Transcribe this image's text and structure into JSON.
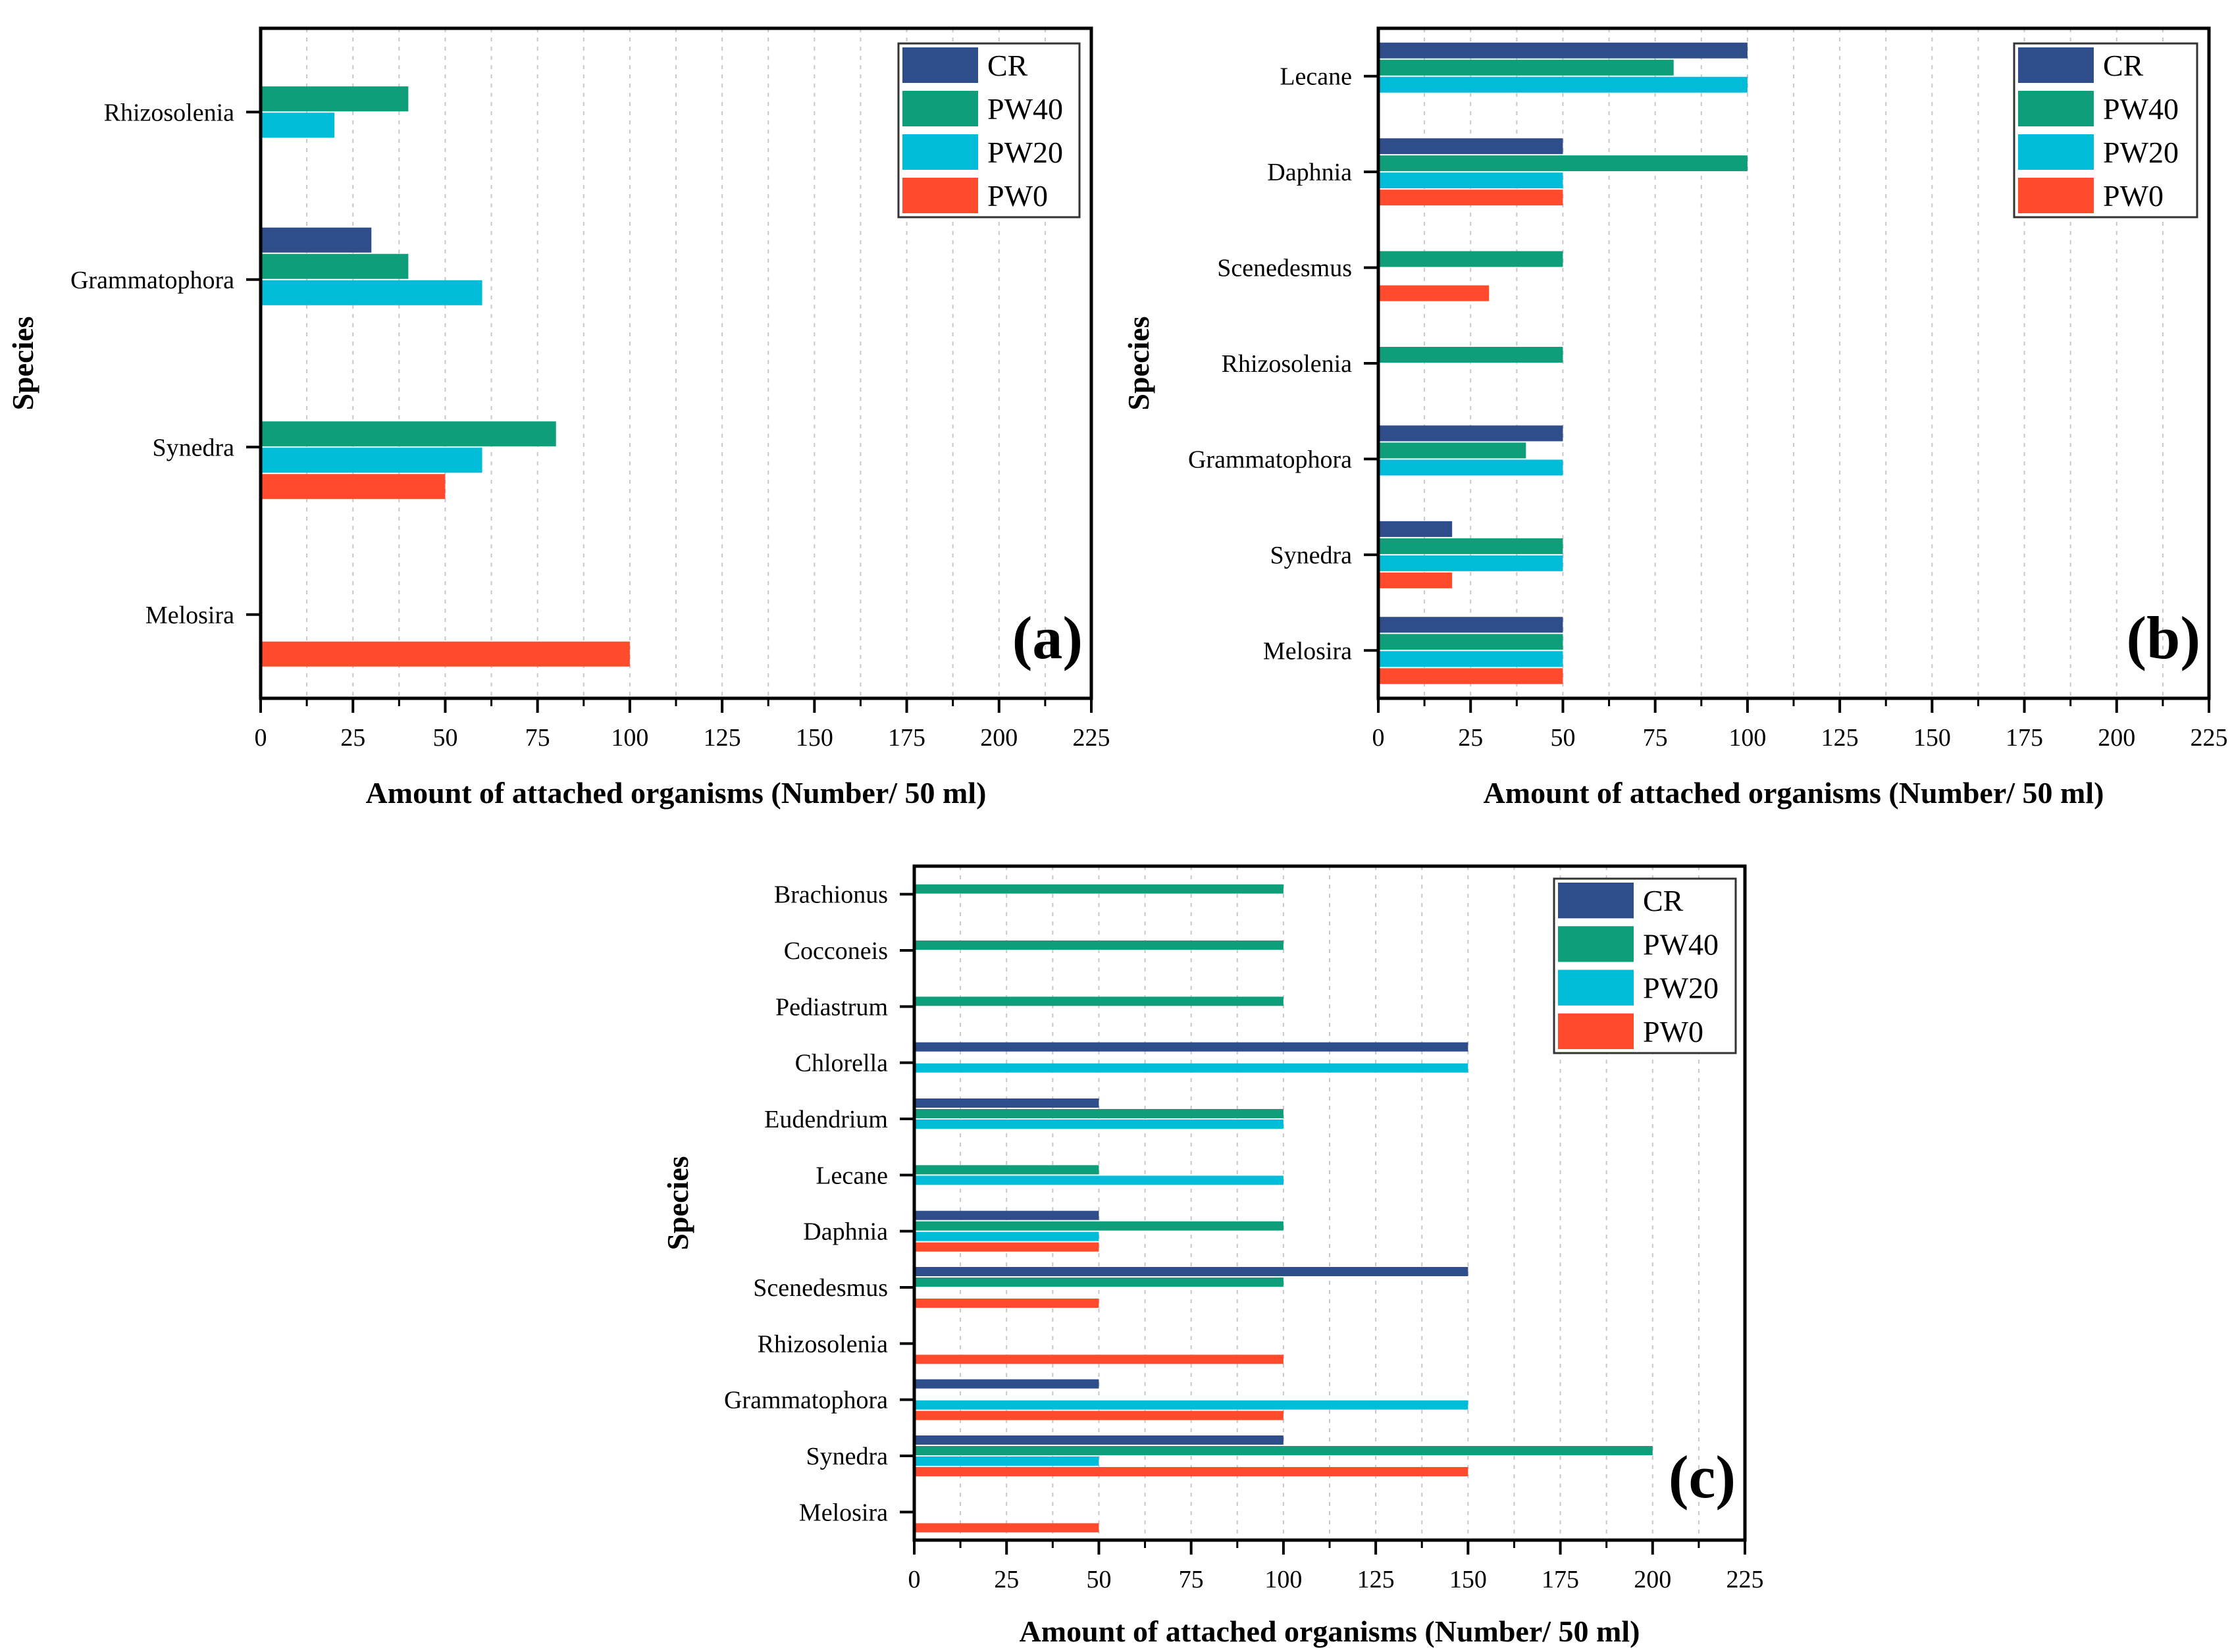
{
  "chart_data": [
    {
      "type": "bar",
      "orientation": "horizontal",
      "panel_label": "(a)",
      "xlabel": "Amount of attached organisms (Number/ 50 ml)",
      "ylabel": "Species",
      "xlim": [
        0,
        225
      ],
      "xticks": [
        "0",
        "25",
        "50",
        "75",
        "100",
        "125",
        "150",
        "175",
        "200",
        "225"
      ],
      "grid": true,
      "legend": "top-right",
      "categories": [
        "Melosira",
        "Synedra",
        "Grammatophora",
        "Rhizosolenia"
      ],
      "series": [
        {
          "name": "CR",
          "color": "#2E4D8A",
          "values": [
            0,
            0,
            30,
            0
          ]
        },
        {
          "name": "PW40",
          "color": "#0E9E7A",
          "values": [
            0,
            80,
            40,
            40
          ]
        },
        {
          "name": "PW20",
          "color": "#00BCD9",
          "values": [
            0,
            60,
            60,
            20
          ]
        },
        {
          "name": "PW0",
          "color": "#FF4B2B",
          "values": [
            100,
            50,
            0,
            0
          ]
        }
      ]
    },
    {
      "type": "bar",
      "orientation": "horizontal",
      "panel_label": "(b)",
      "xlabel": "Amount of attached organisms (Number/ 50 ml)",
      "ylabel": "Species",
      "xlim": [
        0,
        225
      ],
      "xticks": [
        "0",
        "25",
        "50",
        "75",
        "100",
        "125",
        "150",
        "175",
        "200",
        "225"
      ],
      "grid": true,
      "legend": "top-right",
      "categories": [
        "Melosira",
        "Synedra",
        "Grammatophora",
        "Rhizosolenia",
        "Scenedesmus",
        "Daphnia",
        "Lecane"
      ],
      "series": [
        {
          "name": "CR",
          "color": "#2E4D8A",
          "values": [
            50,
            20,
            50,
            0,
            0,
            50,
            100
          ]
        },
        {
          "name": "PW40",
          "color": "#0E9E7A",
          "values": [
            50,
            50,
            40,
            50,
            50,
            100,
            80
          ]
        },
        {
          "name": "PW20",
          "color": "#00BCD9",
          "values": [
            50,
            50,
            50,
            0,
            0,
            50,
            100
          ]
        },
        {
          "name": "PW0",
          "color": "#FF4B2B",
          "values": [
            50,
            20,
            0,
            0,
            30,
            50,
            0
          ]
        }
      ]
    },
    {
      "type": "bar",
      "orientation": "horizontal",
      "panel_label": "(c)",
      "xlabel": "Amount of attached organisms (Number/ 50 ml)",
      "ylabel": "Species",
      "xlim": [
        0,
        225
      ],
      "xticks": [
        "0",
        "25",
        "50",
        "75",
        "100",
        "125",
        "150",
        "175",
        "200",
        "225"
      ],
      "grid": true,
      "legend": "top-right",
      "categories": [
        "Melosira",
        "Synedra",
        "Grammatophora",
        "Rhizosolenia",
        "Scenedesmus",
        "Daphnia",
        "Lecane",
        "Eudendrium",
        "Chlorella",
        "Pediastrum",
        "Cocconeis",
        "Brachionus"
      ],
      "series": [
        {
          "name": "CR",
          "color": "#2E4D8A",
          "values": [
            0,
            100,
            50,
            0,
            150,
            50,
            0,
            50,
            150,
            0,
            0,
            0
          ]
        },
        {
          "name": "PW40",
          "color": "#0E9E7A",
          "values": [
            0,
            200,
            0,
            0,
            100,
            100,
            50,
            100,
            0,
            100,
            100,
            100
          ]
        },
        {
          "name": "PW20",
          "color": "#00BCD9",
          "values": [
            0,
            50,
            150,
            0,
            0,
            50,
            100,
            100,
            150,
            0,
            0,
            0
          ]
        },
        {
          "name": "PW0",
          "color": "#FF4B2B",
          "values": [
            50,
            150,
            100,
            100,
            50,
            50,
            0,
            0,
            0,
            0,
            0,
            0
          ]
        }
      ]
    }
  ]
}
